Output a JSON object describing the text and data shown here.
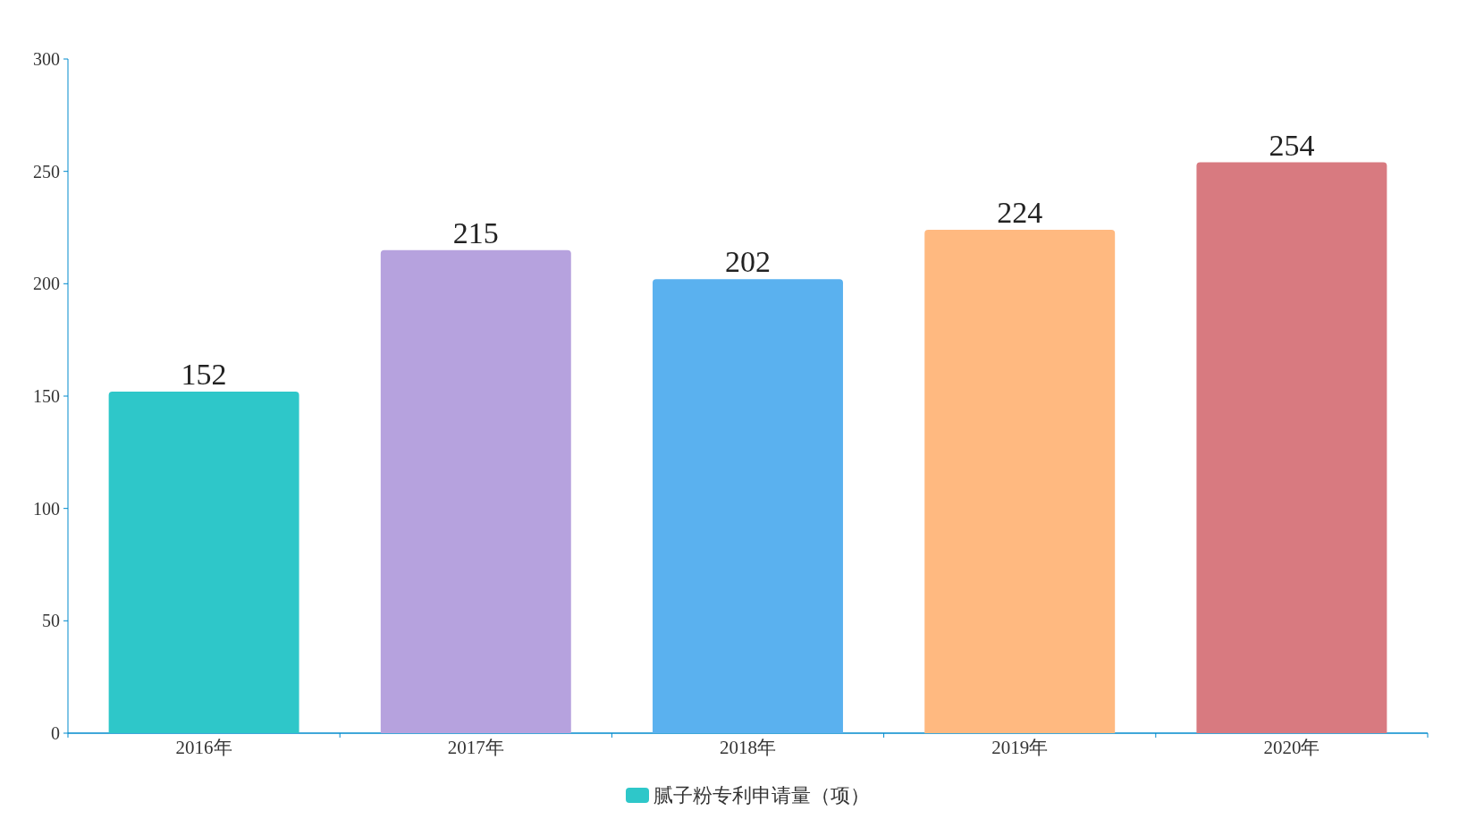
{
  "chart_data": {
    "type": "bar",
    "categories": [
      "2016年",
      "2017年",
      "2018年",
      "2019年",
      "2020年"
    ],
    "series": [
      {
        "name": "腻子粉专利申请量（项）",
        "color": "#2ec7c9",
        "colors": [
          "#2ec7c9",
          "#b6a2de",
          "#5ab1ef",
          "#ffb980",
          "#d87a80"
        ],
        "values": [
          152,
          215,
          202,
          224,
          254
        ]
      }
    ],
    "ylim": [
      0,
      300
    ],
    "yticks": [
      0,
      50,
      100,
      150,
      200,
      250,
      300
    ],
    "data_labels": true,
    "legend": "bottom"
  }
}
